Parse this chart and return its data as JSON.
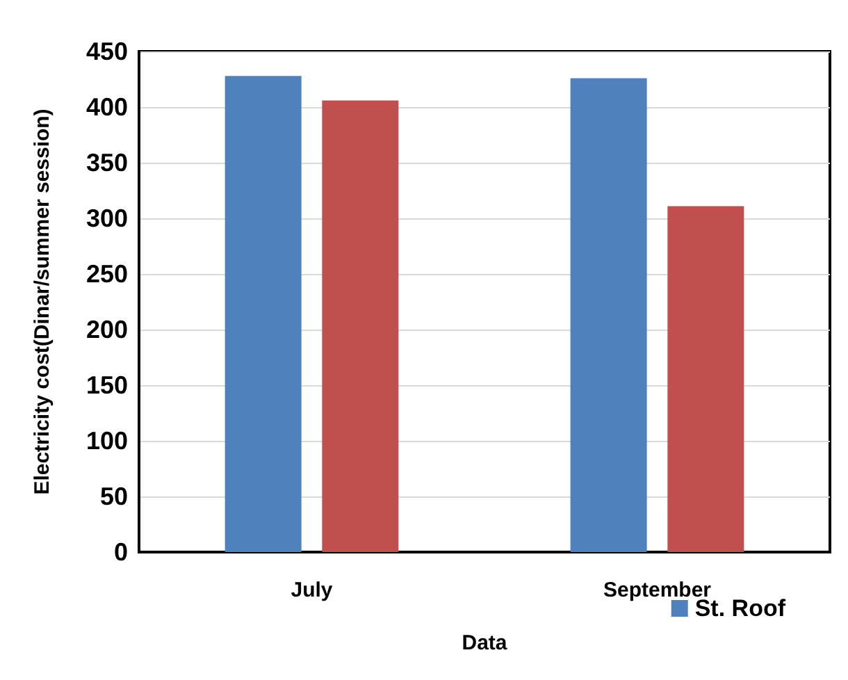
{
  "chart_data": {
    "type": "bar",
    "xlabel": "Data",
    "ylabel": "Electricity cost(Dinar/summer session)",
    "categories": [
      "July",
      "September"
    ],
    "series": [
      {
        "name": "St. Roof",
        "color": "#4f81bd",
        "values": [
          428,
          426
        ]
      },
      {
        "color": "#c0504d",
        "values": [
          406,
          311
        ]
      }
    ],
    "ylim": [
      0,
      450
    ],
    "yticks": [
      0,
      50,
      100,
      150,
      200,
      250,
      300,
      350,
      400,
      450
    ],
    "grid": "y",
    "legend": "bottom right"
  }
}
